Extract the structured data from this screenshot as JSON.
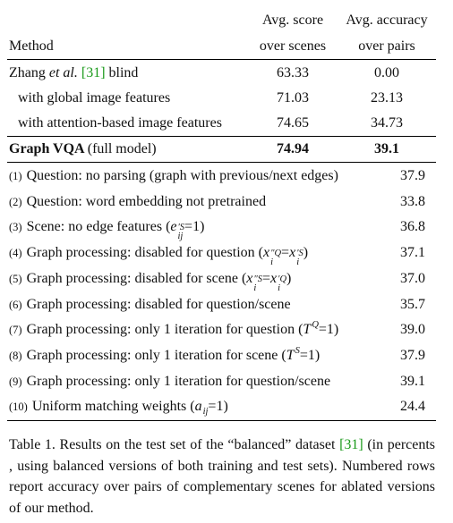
{
  "header": {
    "method": "Method",
    "score": [
      "Avg. score",
      "over scenes"
    ],
    "accuracy": [
      "Avg. accuracy",
      "over pairs"
    ]
  },
  "main_rows": [
    {
      "name": "Zhang",
      "emph": "et al.",
      "ref": "[31]",
      "suffix": "blind",
      "score": "63.33",
      "accuracy": "0.00"
    },
    {
      "name": "with global image features",
      "score": "71.03",
      "accuracy": "23.13"
    },
    {
      "name": "with attention-based image features",
      "score": "74.65",
      "accuracy": "34.73"
    },
    {
      "name": "Graph VQA",
      "suffix": "(full model)",
      "score": "74.94",
      "accuracy": "39.1",
      "bold": true
    }
  ],
  "ablations": [
    {
      "num": "(1)",
      "label": [
        "Question: no parsing (graph with previous/next edges)"
      ],
      "value": "37.9"
    },
    {
      "num": "(2)",
      "label": [
        "Question: word embedding not pretrained"
      ],
      "value": "33.8"
    },
    {
      "num": "(3)",
      "label": [
        "Scene: no edge features (",
        {
          "t": "e",
          "sup": "′S",
          "sub": "ij"
        },
        "=1)"
      ],
      "value": "36.8"
    },
    {
      "num": "(4)",
      "label": [
        "Graph processing: disabled for question (",
        {
          "t": "x",
          "sup": "″Q",
          "sub": "i"
        },
        "=",
        {
          "t": "x",
          "sup": "′S",
          "sub": "i"
        },
        ")"
      ],
      "value": "37.1"
    },
    {
      "num": "(5)",
      "label": [
        "Graph processing: disabled for scene (",
        {
          "t": "x",
          "sup": "″S",
          "sub": "i"
        },
        "=",
        {
          "t": "x",
          "sup": "′Q",
          "sub": "i"
        },
        ")"
      ],
      "value": "37.0"
    },
    {
      "num": "(6)",
      "label": [
        "Graph processing: disabled for question/scene"
      ],
      "value": "35.7"
    },
    {
      "num": "(7)",
      "label": [
        "Graph processing: only 1 iteration for question (",
        {
          "t": "T",
          "sup": "Q"
        },
        "=1)"
      ],
      "value": "39.0"
    },
    {
      "num": "(8)",
      "label": [
        "Graph processing: only 1 iteration for scene (",
        {
          "t": "T",
          "sup": "S"
        },
        "=1)"
      ],
      "value": "37.9"
    },
    {
      "num": "(9)",
      "label": [
        "Graph processing: only 1 iteration for question/scene"
      ],
      "value": "39.1"
    },
    {
      "num": "(10)",
      "label": [
        "Uniform matching weights (",
        {
          "t": "a",
          "sub": "ij"
        },
        "=1)"
      ],
      "value": "24.4"
    }
  ],
  "caption": {
    "before": "Table 1. Results on the test set of the “balanced” dataset",
    "ref": "[31]",
    "after": "(in percents , using balanced versions of both training and test sets). Numbered rows report accuracy over pairs of complementary scenes for ablated versions of our method."
  }
}
